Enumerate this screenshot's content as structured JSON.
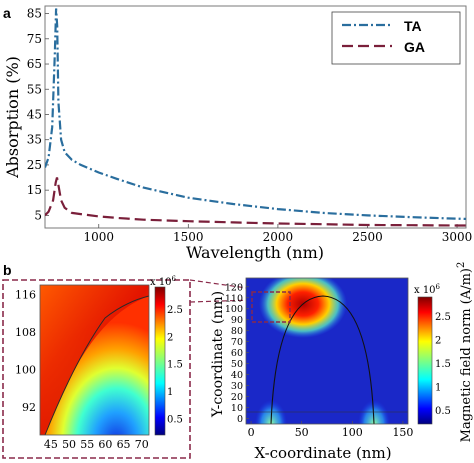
{
  "panel_a": {
    "label": "a",
    "chart_data": {
      "type": "line",
      "xlabel": "Wavelength (nm)",
      "ylabel": "Absorption (%)",
      "xlim": [
        700,
        3050
      ],
      "ylim": [
        0,
        88
      ],
      "xticks": [
        1000,
        1500,
        2000,
        2500,
        3000
      ],
      "yticks": [
        5,
        15,
        25,
        35,
        45,
        55,
        65,
        75,
        85
      ],
      "legend_position": "top-right",
      "series": [
        {
          "name": "TA",
          "color": "#2a6e9e",
          "dash": "dash-dot",
          "x": [
            700,
            720,
            740,
            755,
            762,
            768,
            775,
            790,
            810,
            850,
            900,
            1000,
            1100,
            1250,
            1500,
            1750,
            2000,
            2250,
            2500,
            2750,
            3000,
            3050
          ],
          "y": [
            24,
            28,
            40,
            70,
            87,
            80,
            50,
            35,
            30,
            27,
            25,
            22,
            19.5,
            16,
            12,
            9.5,
            7.5,
            6,
            5,
            4.3,
            3.7,
            3.6
          ]
        },
        {
          "name": "GA",
          "color": "#7a1f3a",
          "dash": "long-dash",
          "x": [
            700,
            720,
            745,
            760,
            767,
            775,
            790,
            810,
            850,
            900,
            1000,
            1100,
            1250,
            1500,
            1750,
            2000,
            2250,
            2500,
            2750,
            3000,
            3050
          ],
          "y": [
            5,
            6.5,
            11,
            18,
            20,
            17,
            11,
            8,
            6,
            5.5,
            4.6,
            4,
            3.3,
            2.7,
            2.2,
            1.8,
            1.5,
            1.2,
            1.1,
            1,
            1
          ]
        }
      ]
    }
  },
  "panel_b": {
    "label": "b",
    "inset": {
      "xticks": [
        45,
        50,
        55,
        60,
        65,
        70
      ],
      "yticks": [
        92,
        100,
        108,
        116
      ],
      "xlim": [
        42,
        72
      ],
      "ylim": [
        86,
        118
      ],
      "colorbar": {
        "exponent_label": "x 10",
        "exponent_power": "6",
        "ticks": [
          0.5,
          1,
          1.5,
          2,
          2.5
        ],
        "range": [
          0.2,
          2.9
        ]
      }
    },
    "main": {
      "xlabel": "X-coordinate (nm)",
      "ylabel": "Y-coordinate (nm)",
      "xticks": [
        0,
        50,
        100,
        150
      ],
      "yticks": [
        0,
        10,
        20,
        30,
        40,
        50,
        60,
        70,
        80,
        90,
        100,
        110,
        120
      ],
      "xlim": [
        -5,
        155
      ],
      "ylim": [
        -5,
        128
      ],
      "colorbar": {
        "title": "Magnetic field norm (A/m)",
        "title_power": "2",
        "exponent_label": "x 10",
        "exponent_power": "6",
        "ticks": [
          0.5,
          1,
          1.5,
          2,
          2.5
        ],
        "range": [
          0.2,
          2.9
        ]
      }
    }
  }
}
